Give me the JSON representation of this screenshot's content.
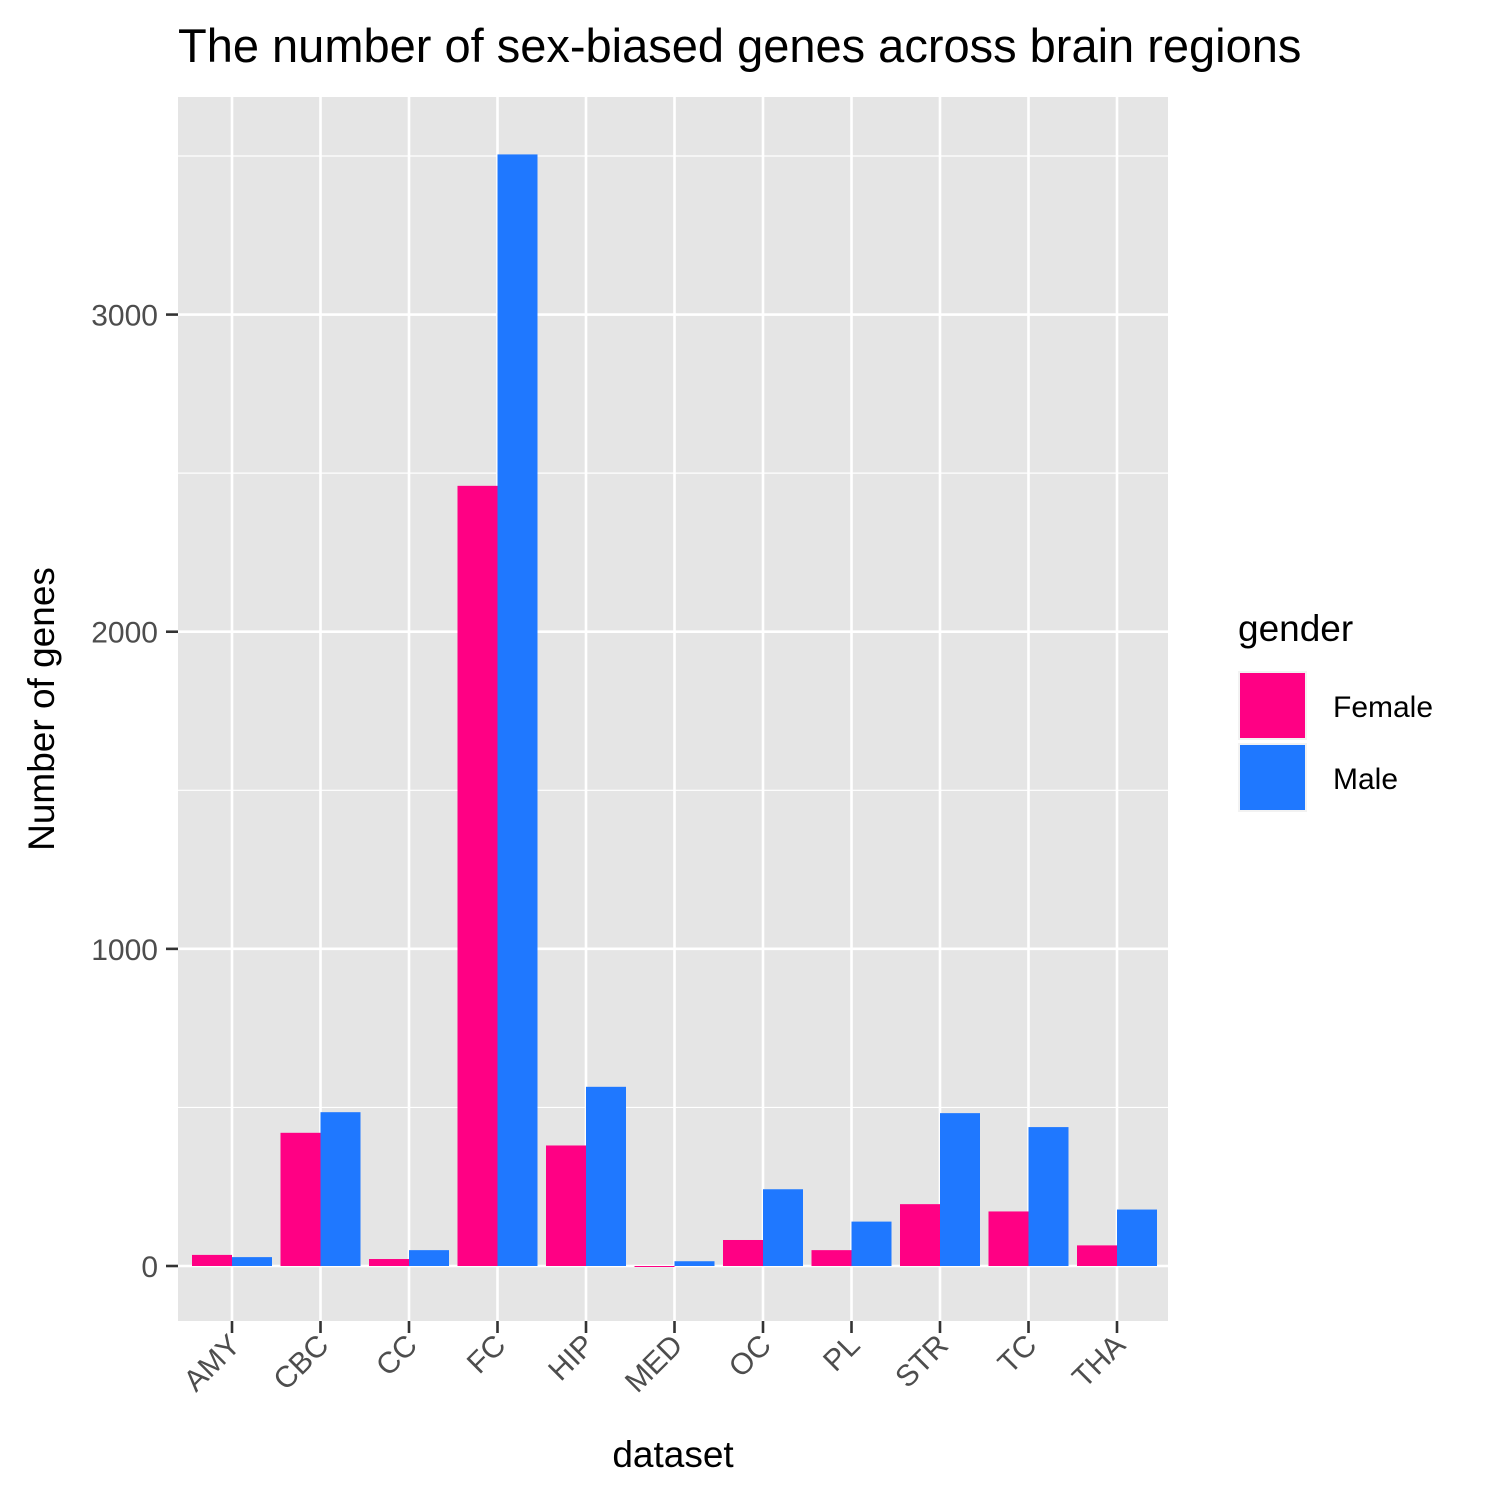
{
  "chart_data": {
    "type": "bar",
    "title": "The number of sex-biased genes across brain regions",
    "xlabel": "dataset",
    "ylabel": "Number of genes",
    "categories": [
      "AMY",
      "CBC",
      "CC",
      "FC",
      "HIP",
      "MED",
      "OC",
      "PL",
      "STR",
      "TC",
      "THA"
    ],
    "series": [
      {
        "name": "Female",
        "color": "#FF0084",
        "values": [
          35,
          420,
          22,
          2460,
          380,
          -3,
          82,
          50,
          195,
          172,
          65
        ]
      },
      {
        "name": "Male",
        "color": "#1F78FF",
        "values": [
          28,
          485,
          50,
          3505,
          565,
          15,
          242,
          140,
          482,
          438,
          178
        ]
      }
    ],
    "ylim": [
      -175,
      3680
    ],
    "yticks": [
      0,
      1000,
      2000,
      3000
    ],
    "grid": true,
    "legend": {
      "title": "gender",
      "position": "right"
    },
    "background": "#E5E5E5",
    "gridColor": "#FFFFFF"
  }
}
